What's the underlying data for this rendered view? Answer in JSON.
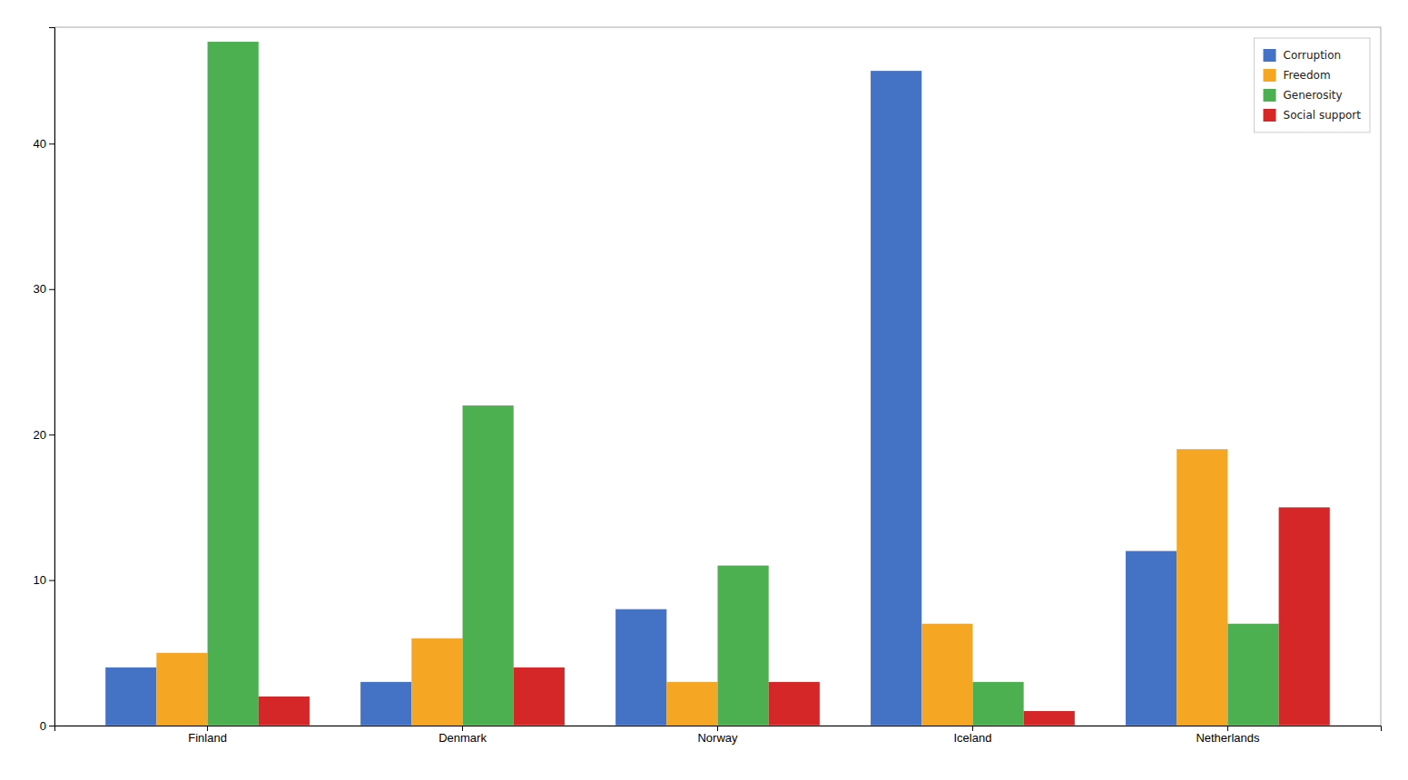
{
  "chart_data": {
    "type": "bar",
    "categories": [
      "Finland",
      "Denmark",
      "Norway",
      "Iceland",
      "Netherlands"
    ],
    "series": [
      {
        "name": "Corruption",
        "color": "#4472c4",
        "values": [
          4,
          3,
          8,
          45,
          12
        ]
      },
      {
        "name": "Freedom",
        "color": "#f5a623",
        "values": [
          5,
          6,
          3,
          7,
          19
        ]
      },
      {
        "name": "Generosity",
        "color": "#4caf50",
        "values": [
          47,
          22,
          11,
          3,
          7
        ]
      },
      {
        "name": "Social support",
        "color": "#d62728",
        "values": [
          2,
          4,
          3,
          1,
          15
        ]
      }
    ],
    "ylim": [
      0,
      48
    ],
    "yticks": [
      0,
      10,
      20,
      30,
      40
    ],
    "grid": false,
    "legend": "upper right"
  }
}
